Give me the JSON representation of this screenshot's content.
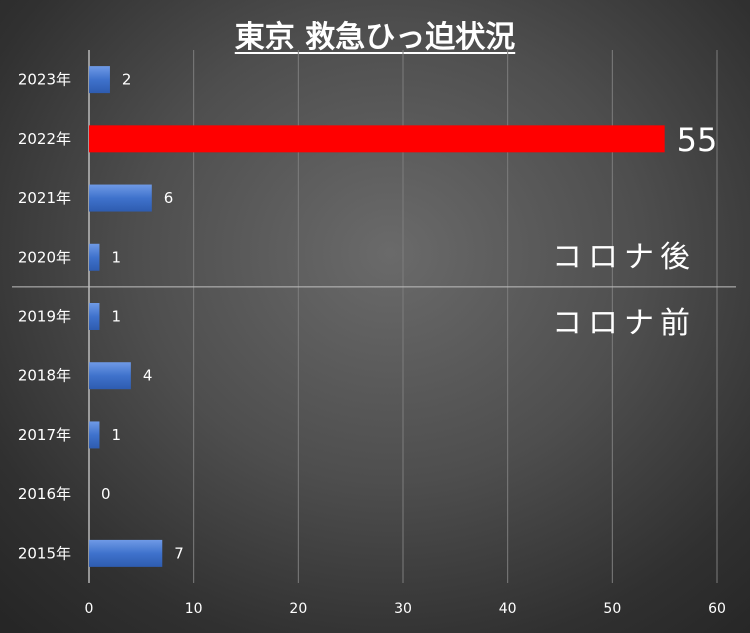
{
  "chart_data": {
    "type": "bar",
    "orientation": "horizontal",
    "title": "東京 救急ひっ迫状況",
    "categories": [
      "2023年",
      "2022年",
      "2021年",
      "2020年",
      "2019年",
      "2018年",
      "2017年",
      "2016年",
      "2015年"
    ],
    "values": [
      2,
      55,
      6,
      1,
      1,
      4,
      1,
      0,
      7
    ],
    "xlim": [
      0,
      60
    ],
    "xticks": [
      "0",
      "10",
      "20",
      "30",
      "40",
      "50",
      "60"
    ],
    "highlight": {
      "category": "2022年",
      "color": "#ff0000"
    },
    "bar_color": "#4a7fd6",
    "grid": true,
    "xlabel": "",
    "ylabel": "",
    "annotations": {
      "after": "コロナ後",
      "before": "コロナ前"
    }
  }
}
